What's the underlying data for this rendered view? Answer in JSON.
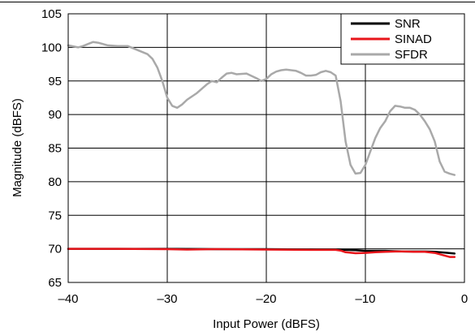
{
  "chart_data": {
    "type": "line",
    "xlabel": "Input Power (dBFS)",
    "ylabel": "Magnitude (dBFS)",
    "xlim": [
      -40,
      0
    ],
    "ylim": [
      65,
      105
    ],
    "x_ticks": [
      -40,
      -30,
      -20,
      -10,
      0
    ],
    "x_tick_labels": [
      "–40",
      "–30",
      "–20",
      "–10",
      "0"
    ],
    "y_ticks": [
      65,
      70,
      75,
      80,
      85,
      90,
      95,
      100,
      105
    ],
    "y_tick_labels": [
      "65",
      "70",
      "75",
      "80",
      "85",
      "90",
      "95",
      "100",
      "105"
    ],
    "grid": true,
    "legend_position": "top-right",
    "series": [
      {
        "name": "SNR",
        "color": "#000000",
        "x": [
          -40,
          -35,
          -30,
          -25,
          -20,
          -15,
          -13,
          -12,
          -11,
          -10,
          -9,
          -8,
          -7,
          -6,
          -5,
          -4,
          -3,
          -2,
          -1
        ],
        "y": [
          70.0,
          70.0,
          70.0,
          69.95,
          69.95,
          69.9,
          69.9,
          69.85,
          69.8,
          69.7,
          69.7,
          69.7,
          69.65,
          69.6,
          69.6,
          69.6,
          69.55,
          69.45,
          69.3
        ]
      },
      {
        "name": "SINAD",
        "color": "#e8151b",
        "x": [
          -40,
          -35,
          -30,
          -28,
          -25,
          -20,
          -15,
          -13,
          -12.5,
          -12,
          -11,
          -10,
          -9,
          -8,
          -7,
          -6,
          -5,
          -4,
          -3,
          -2,
          -1.5,
          -1
        ],
        "y": [
          70.0,
          70.0,
          69.95,
          69.9,
          69.95,
          69.9,
          69.85,
          69.85,
          69.75,
          69.5,
          69.35,
          69.4,
          69.5,
          69.55,
          69.6,
          69.6,
          69.55,
          69.55,
          69.4,
          69.0,
          68.8,
          68.8
        ]
      },
      {
        "name": "SFDR",
        "color": "#a9a9a9",
        "x": [
          -40,
          -39,
          -38.5,
          -38,
          -37.5,
          -37,
          -36,
          -35,
          -34,
          -33,
          -32.5,
          -32,
          -31.5,
          -31,
          -30.5,
          -30,
          -29.5,
          -29,
          -28.5,
          -28,
          -27,
          -26,
          -25.5,
          -25,
          -24.5,
          -24,
          -23.5,
          -23,
          -22,
          -21,
          -20.5,
          -20,
          -19.5,
          -19,
          -18.5,
          -18,
          -17.5,
          -17,
          -16.5,
          -16,
          -15.5,
          -15,
          -14.5,
          -14,
          -13.5,
          -13,
          -12.5,
          -12,
          -11.5,
          -11,
          -10.5,
          -10,
          -9.5,
          -9,
          -8.5,
          -8,
          -7.5,
          -7,
          -6.5,
          -6,
          -5.5,
          -5,
          -4.5,
          -4,
          -3.5,
          -3,
          -2.5,
          -2,
          -1.5,
          -1
        ],
        "y": [
          100.3,
          100.0,
          100.2,
          100.5,
          100.8,
          100.7,
          100.3,
          100.2,
          100.2,
          99.6,
          99.3,
          99.0,
          98.3,
          97.0,
          95.0,
          92.5,
          91.3,
          91.0,
          91.5,
          92.2,
          93.2,
          94.5,
          95.0,
          94.8,
          95.5,
          96.1,
          96.2,
          96.0,
          96.1,
          95.4,
          95.0,
          95.3,
          96.0,
          96.4,
          96.6,
          96.7,
          96.6,
          96.5,
          96.2,
          95.8,
          95.8,
          95.9,
          96.3,
          96.5,
          96.3,
          95.8,
          92.0,
          86.0,
          82.5,
          81.2,
          81.3,
          82.5,
          84.5,
          86.5,
          88.0,
          89.0,
          90.5,
          91.3,
          91.2,
          91.0,
          91.0,
          90.7,
          90.0,
          89.0,
          87.8,
          86.0,
          83.0,
          81.5,
          81.2,
          81.0
        ]
      }
    ]
  }
}
